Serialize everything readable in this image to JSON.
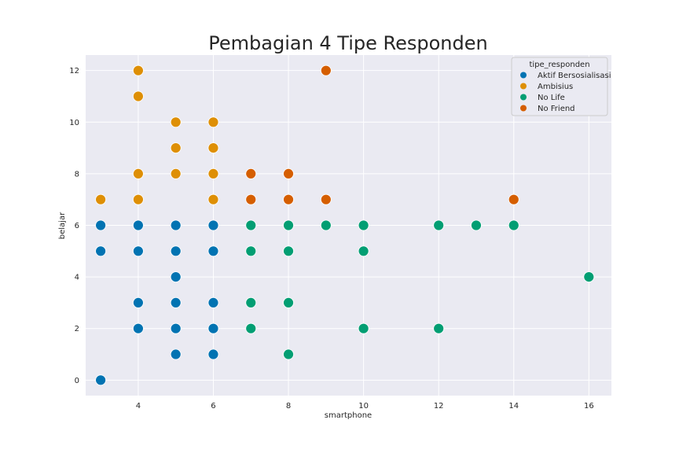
{
  "chart_data": {
    "type": "scatter",
    "title": "Pembagian 4 Tipe Responden",
    "xlabel": "smartphone",
    "ylabel": "belajar",
    "xlim": [
      2.6,
      16.6
    ],
    "ylim": [
      -0.6,
      12.6
    ],
    "xticks": [
      4,
      6,
      8,
      10,
      12,
      14,
      16
    ],
    "yticks": [
      0,
      2,
      4,
      6,
      8,
      10,
      12
    ],
    "grid": true,
    "legend_title": "tipe_responden",
    "legend_position": "top-right",
    "series": [
      {
        "name": "Aktif Bersosialisasi",
        "color": "#0173b2",
        "points": [
          [
            3,
            0
          ],
          [
            3,
            5
          ],
          [
            3,
            6
          ],
          [
            4,
            2
          ],
          [
            4,
            3
          ],
          [
            4,
            5
          ],
          [
            4,
            6
          ],
          [
            5,
            1
          ],
          [
            5,
            2
          ],
          [
            5,
            3
          ],
          [
            5,
            4
          ],
          [
            5,
            5
          ],
          [
            5,
            6
          ],
          [
            6,
            1
          ],
          [
            6,
            2
          ],
          [
            6,
            3
          ],
          [
            6,
            5
          ],
          [
            6,
            6
          ]
        ]
      },
      {
        "name": "Ambisius",
        "color": "#de8f05",
        "points": [
          [
            3,
            7
          ],
          [
            4,
            7
          ],
          [
            4,
            8
          ],
          [
            4,
            11
          ],
          [
            4,
            12
          ],
          [
            5,
            8
          ],
          [
            5,
            9
          ],
          [
            5,
            10
          ],
          [
            6,
            7
          ],
          [
            6,
            8
          ],
          [
            6,
            9
          ],
          [
            6,
            10
          ]
        ]
      },
      {
        "name": "No Life",
        "color": "#029e73",
        "points": [
          [
            7,
            2
          ],
          [
            7,
            3
          ],
          [
            7,
            5
          ],
          [
            7,
            6
          ],
          [
            8,
            1
          ],
          [
            8,
            3
          ],
          [
            8,
            5
          ],
          [
            8,
            6
          ],
          [
            9,
            6
          ],
          [
            10,
            2
          ],
          [
            10,
            5
          ],
          [
            10,
            6
          ],
          [
            12,
            2
          ],
          [
            12,
            6
          ],
          [
            13,
            6
          ],
          [
            14,
            6
          ],
          [
            16,
            4
          ]
        ]
      },
      {
        "name": "No Friend",
        "color": "#d55e00",
        "points": [
          [
            7,
            7
          ],
          [
            7,
            8
          ],
          [
            8,
            7
          ],
          [
            8,
            8
          ],
          [
            9,
            7
          ],
          [
            9,
            12
          ],
          [
            14,
            7
          ]
        ]
      }
    ]
  }
}
